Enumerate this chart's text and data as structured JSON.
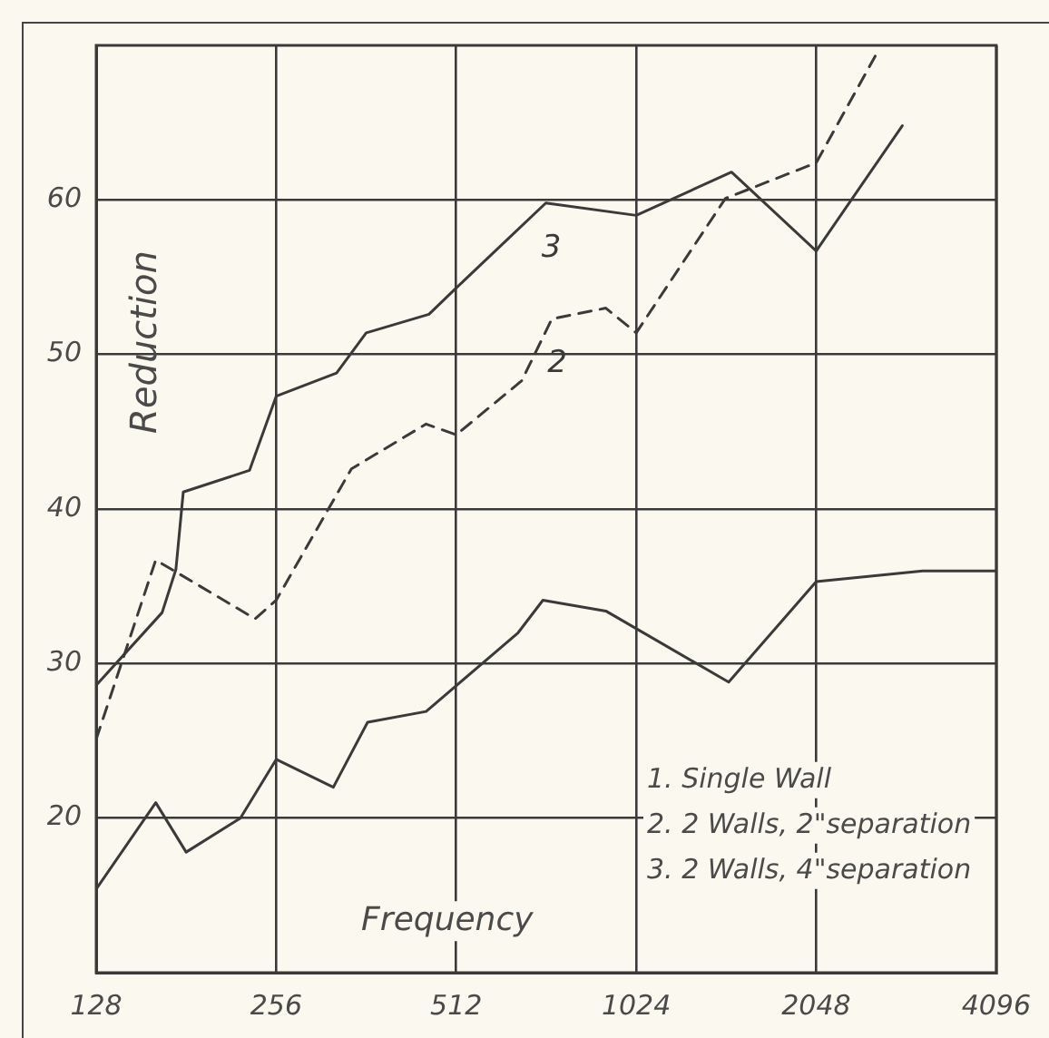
{
  "chart_data": {
    "type": "line",
    "xlabel": "Frequency",
    "ylabel": "Reduction",
    "xlim": [
      128,
      4096
    ],
    "xticks": [
      128,
      256,
      512,
      1024,
      2048,
      4096
    ],
    "log": "x",
    "ylim": [
      10,
      70
    ],
    "yticks": [
      20,
      30,
      40,
      50,
      60
    ],
    "grid": true,
    "series": [
      {
        "color": "#3a3a3a",
        "line_style": "solid",
        "x": [
          128,
          161,
          181,
          223,
          256,
          319,
          364,
          456,
          650,
          715,
          911,
          1462,
          2048,
          3085,
          4096
        ],
        "values": [
          15.4,
          21.0,
          17.8,
          20.0,
          23.8,
          22.0,
          26.2,
          26.9,
          32.0,
          34.1,
          33.4,
          28.8,
          35.3,
          36.0,
          36.0
        ]
      },
      {
        "name": "2",
        "color": "#3a3a3a",
        "line_style": "dashed",
        "x": [
          128,
          161,
          236,
          256,
          342,
          456,
          512,
          659,
          740,
          911,
          1024,
          1444,
          2048,
          2570
        ],
        "values": [
          25.1,
          36.7,
          32.9,
          34.1,
          42.6,
          45.5,
          44.8,
          48.3,
          52.3,
          53.0,
          51.4,
          60.1,
          62.4,
          69.3
        ]
      },
      {
        "name": "3",
        "color": "#3a3a3a",
        "line_style": "solid",
        "x": [
          128,
          165,
          174,
          179,
          231,
          256,
          323,
          362,
          461,
          512,
          723,
          1024,
          1478,
          2048,
          2853
        ],
        "values": [
          28.6,
          33.3,
          36.1,
          41.1,
          42.5,
          47.3,
          48.8,
          51.4,
          52.6,
          54.3,
          59.8,
          59.0,
          61.8,
          56.7,
          64.8
        ]
      }
    ],
    "annotations": [
      "1. Single Wall",
      "2. 2 Walls, 2\"separation",
      "3. 2 Walls, 4\"separation"
    ]
  }
}
